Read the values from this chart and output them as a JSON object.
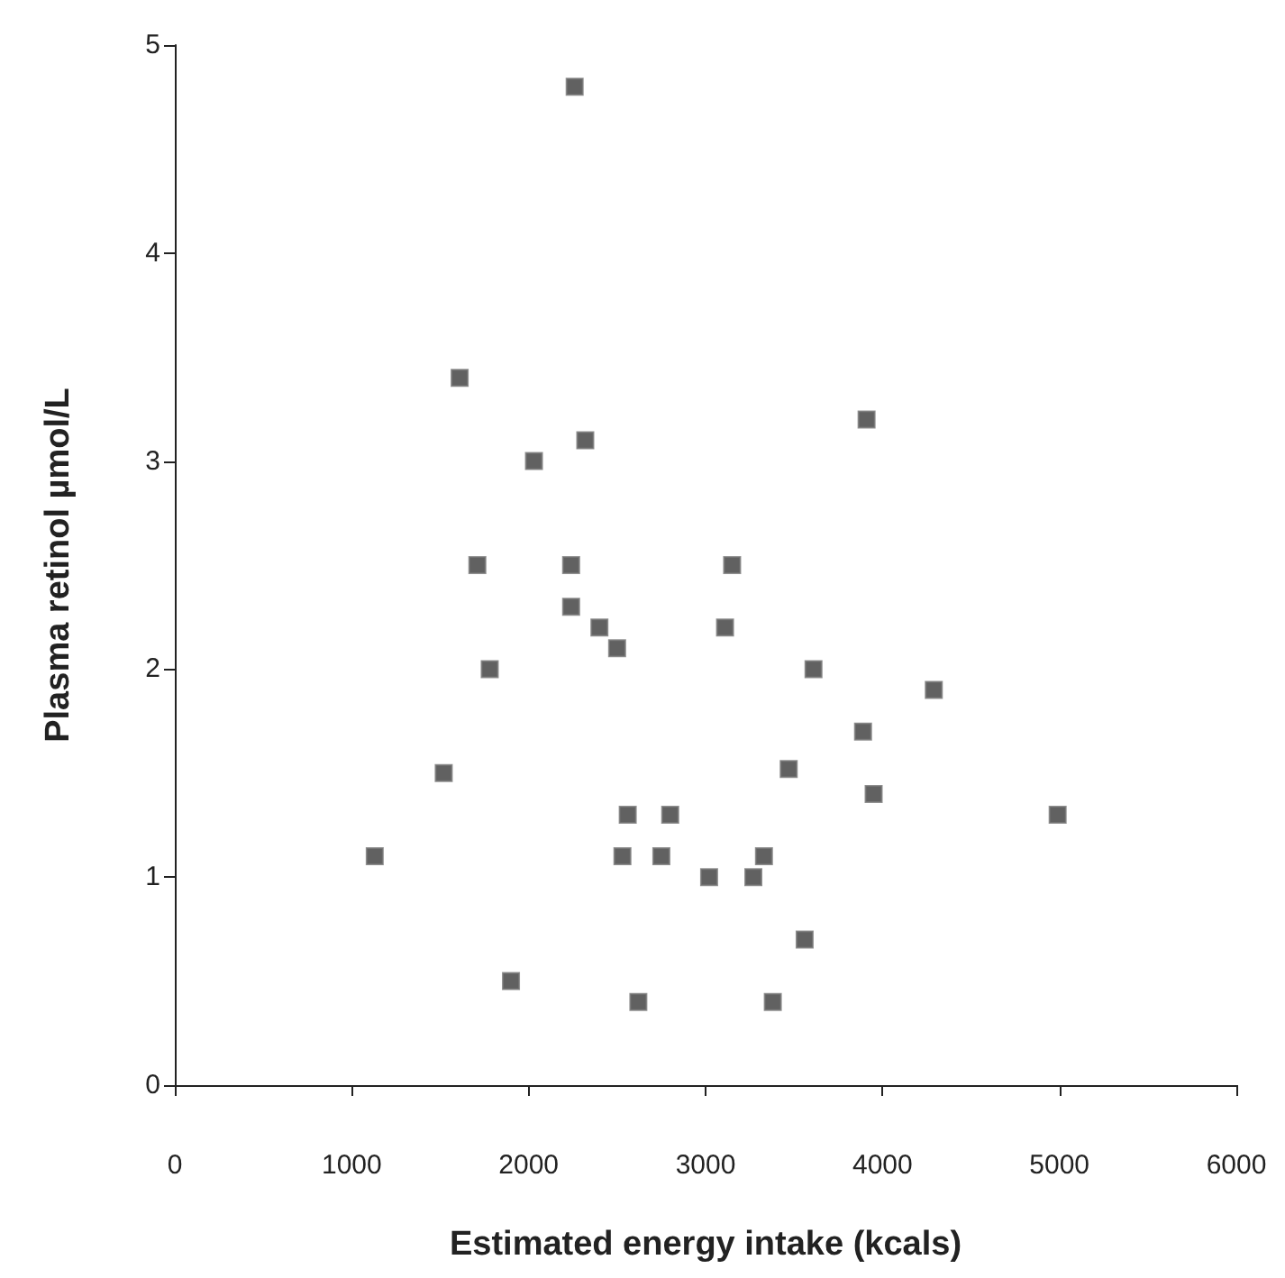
{
  "chart_data": {
    "type": "scatter",
    "xlabel": "Estimated energy intake (kcals)",
    "ylabel": "Plasma retinol µmol/L",
    "xlim": [
      0,
      6000
    ],
    "xticks": [
      0,
      1000,
      2000,
      3000,
      4000,
      5000,
      6000
    ],
    "ylim": [
      0,
      5
    ],
    "yticks": [
      0,
      1,
      2,
      3,
      4,
      5
    ],
    "marker": "square",
    "grid": false,
    "series": [
      {
        "color": "#3a3a3a",
        "x": [
          1130,
          1520,
          1610,
          1710,
          1780,
          1900,
          2030,
          2240,
          2240,
          2260,
          2320,
          2400,
          2500,
          2560,
          2530,
          2620,
          2750,
          2800,
          3020,
          3110,
          3150,
          3270,
          3330,
          3380,
          3470,
          3560,
          3610,
          3890,
          3910,
          3950,
          4290,
          4990
        ],
        "values": [
          1.1,
          1.5,
          3.4,
          2.5,
          2.0,
          0.5,
          3.0,
          2.5,
          2.3,
          4.8,
          3.1,
          2.2,
          2.1,
          1.3,
          1.1,
          0.4,
          1.1,
          1.3,
          1.0,
          2.2,
          2.5,
          1.0,
          1.1,
          0.4,
          1.52,
          0.7,
          2.0,
          1.7,
          3.2,
          1.4,
          1.9,
          1.3
        ]
      }
    ]
  }
}
